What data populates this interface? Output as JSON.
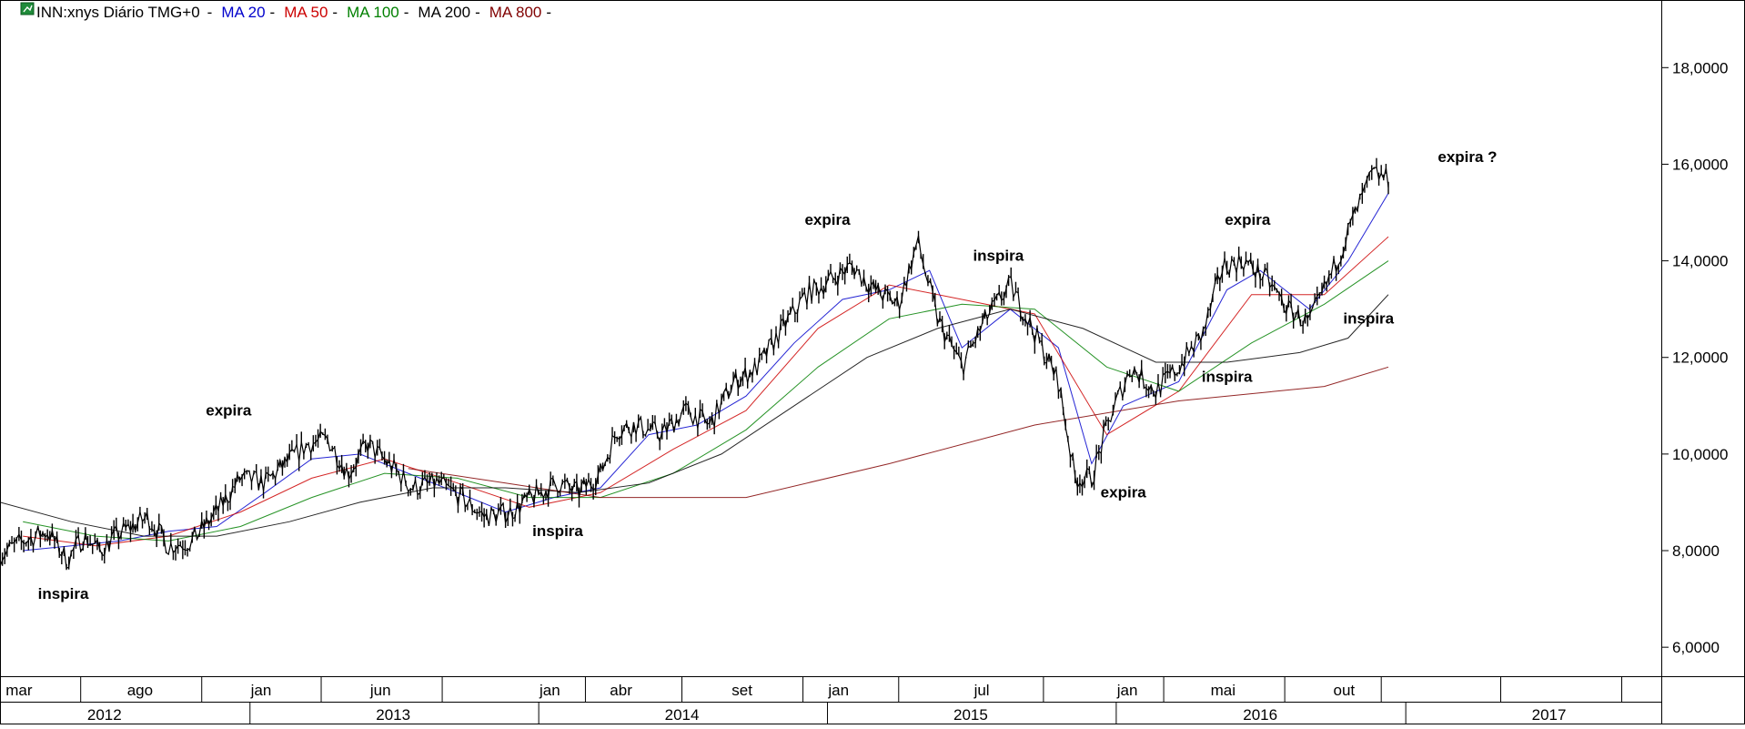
{
  "chart_data": {
    "type": "line",
    "subtype": "ohlc-price-with-moving-averages",
    "title": "INN:xnys Diário TMG+0",
    "legend": [
      {
        "name": "MA 20",
        "color": "#0000cc"
      },
      {
        "name": "MA 50",
        "color": "#cc0000"
      },
      {
        "name": "MA 100",
        "color": "#008000"
      },
      {
        "name": "MA 200",
        "color": "#000000"
      },
      {
        "name": "MA 800",
        "color": "#800000"
      }
    ],
    "legend_marker": "-",
    "yaxis": {
      "ticks": [
        6,
        8,
        10,
        12,
        14,
        16,
        18
      ],
      "tick_labels": [
        "6,0000",
        "8,0000",
        "10,0000",
        "12,0000",
        "14,0000",
        "16,0000",
        "18,0000"
      ],
      "range": [
        5.4,
        19.4
      ],
      "position": "right"
    },
    "xaxis": {
      "range": [
        "2012-02-20",
        "2017-11-20"
      ],
      "month_labels": [
        {
          "date": "2012-03-15",
          "label": "mar"
        },
        {
          "date": "2012-08-15",
          "label": "ago"
        },
        {
          "date": "2013-01-15",
          "label": "jan"
        },
        {
          "date": "2013-06-15",
          "label": "jun"
        },
        {
          "date": "2014-01-15",
          "label": "jan"
        },
        {
          "date": "2014-04-15",
          "label": "abr"
        },
        {
          "date": "2014-09-15",
          "label": "set"
        },
        {
          "date": "2015-01-15",
          "label": "jan"
        },
        {
          "date": "2015-07-15",
          "label": "jul"
        },
        {
          "date": "2016-01-15",
          "label": "jan"
        },
        {
          "date": "2016-05-15",
          "label": "mai"
        },
        {
          "date": "2016-10-15",
          "label": "out"
        }
      ],
      "month_dividers": [
        "2012-06-01",
        "2012-11-01",
        "2013-04-01",
        "2013-09-01",
        "2014-03-01",
        "2014-07-01",
        "2014-12-01",
        "2015-04-01",
        "2015-10-01",
        "2016-03-01",
        "2016-08-01",
        "2016-12-01",
        "2017-05-01",
        "2017-10-01"
      ],
      "year_labels": [
        {
          "date": "2012-07-01",
          "label": "2012"
        },
        {
          "date": "2013-07-01",
          "label": "2013"
        },
        {
          "date": "2014-07-01",
          "label": "2014"
        },
        {
          "date": "2015-07-01",
          "label": "2015"
        },
        {
          "date": "2016-07-01",
          "label": "2016"
        },
        {
          "date": "2017-07-01",
          "label": "2017"
        }
      ],
      "year_dividers": [
        "2013-01-01",
        "2014-01-01",
        "2015-01-01",
        "2016-01-01",
        "2017-01-01"
      ]
    },
    "series": [
      {
        "key": "price",
        "color": "#000000",
        "points": [
          [
            "2012-02-20",
            7.9
          ],
          [
            "2012-03-20",
            8.2
          ],
          [
            "2012-04-20",
            8.4
          ],
          [
            "2012-05-15",
            7.8
          ],
          [
            "2012-06-05",
            8.3
          ],
          [
            "2012-06-25",
            8.0
          ],
          [
            "2012-07-15",
            8.3
          ],
          [
            "2012-08-05",
            8.5
          ],
          [
            "2012-08-25",
            8.7
          ],
          [
            "2012-09-20",
            8.1
          ],
          [
            "2012-10-20",
            8.2
          ],
          [
            "2012-11-20",
            8.8
          ],
          [
            "2012-12-20",
            9.5
          ],
          [
            "2013-01-20",
            9.4
          ],
          [
            "2013-02-15",
            9.8
          ],
          [
            "2013-03-15",
            10.2
          ],
          [
            "2013-04-10",
            10.3
          ],
          [
            "2013-05-05",
            9.6
          ],
          [
            "2013-05-30",
            10.2
          ],
          [
            "2013-06-25",
            9.8
          ],
          [
            "2013-07-25",
            9.3
          ],
          [
            "2013-08-25",
            9.4
          ],
          [
            "2013-09-25",
            9.1
          ],
          [
            "2013-10-25",
            8.7
          ],
          [
            "2013-11-25",
            8.8
          ],
          [
            "2013-12-25",
            9.1
          ],
          [
            "2014-01-25",
            9.4
          ],
          [
            "2014-02-20",
            9.2
          ],
          [
            "2014-03-20",
            9.6
          ],
          [
            "2014-04-10",
            10.5
          ],
          [
            "2014-05-05",
            10.6
          ],
          [
            "2014-06-05",
            10.4
          ],
          [
            "2014-07-05",
            10.9
          ],
          [
            "2014-08-05",
            10.6
          ],
          [
            "2014-09-05",
            11.5
          ],
          [
            "2014-10-05",
            11.8
          ],
          [
            "2014-11-05",
            12.6
          ],
          [
            "2014-12-05",
            13.3
          ],
          [
            "2015-01-05",
            13.6
          ],
          [
            "2015-02-01",
            13.9
          ],
          [
            "2015-03-01",
            13.4
          ],
          [
            "2015-04-01",
            13.1
          ],
          [
            "2015-04-25",
            14.4
          ],
          [
            "2015-05-20",
            12.8
          ],
          [
            "2015-06-20",
            11.8
          ],
          [
            "2015-07-20",
            12.8
          ],
          [
            "2015-08-20",
            13.5
          ],
          [
            "2015-09-20",
            12.5
          ],
          [
            "2015-10-20",
            11.5
          ],
          [
            "2015-11-10",
            9.5
          ],
          [
            "2015-12-01",
            9.5
          ],
          [
            "2015-12-25",
            10.8
          ],
          [
            "2016-01-20",
            11.8
          ],
          [
            "2016-02-20",
            11.3
          ],
          [
            "2016-03-20",
            11.8
          ],
          [
            "2016-04-20",
            12.5
          ],
          [
            "2016-05-15",
            13.9
          ],
          [
            "2016-06-10",
            14.0
          ],
          [
            "2016-07-10",
            13.6
          ],
          [
            "2016-08-05",
            13.0
          ],
          [
            "2016-09-01",
            12.7
          ],
          [
            "2016-10-01",
            13.8
          ],
          [
            "2016-10-25",
            14.8
          ],
          [
            "2016-11-20",
            15.8
          ],
          [
            "2016-12-10",
            15.7
          ]
        ]
      },
      {
        "key": "ma20",
        "name": "MA 20",
        "color": "#0000cc",
        "points": [
          [
            "2012-03-20",
            8.0
          ],
          [
            "2012-05-20",
            8.1
          ],
          [
            "2012-07-20",
            8.2
          ],
          [
            "2012-09-20",
            8.4
          ],
          [
            "2012-11-20",
            8.5
          ],
          [
            "2013-01-20",
            9.2
          ],
          [
            "2013-03-20",
            9.9
          ],
          [
            "2013-05-20",
            10.0
          ],
          [
            "2013-07-20",
            9.6
          ],
          [
            "2013-09-20",
            9.2
          ],
          [
            "2013-11-20",
            8.8
          ],
          [
            "2014-01-20",
            9.1
          ],
          [
            "2014-03-20",
            9.3
          ],
          [
            "2014-05-20",
            10.4
          ],
          [
            "2014-07-20",
            10.6
          ],
          [
            "2014-09-20",
            11.2
          ],
          [
            "2014-11-20",
            12.3
          ],
          [
            "2015-01-20",
            13.2
          ],
          [
            "2015-03-20",
            13.4
          ],
          [
            "2015-05-10",
            13.8
          ],
          [
            "2015-06-20",
            12.2
          ],
          [
            "2015-08-20",
            13.0
          ],
          [
            "2015-10-20",
            12.2
          ],
          [
            "2015-12-01",
            9.8
          ],
          [
            "2016-01-10",
            11.0
          ],
          [
            "2016-03-20",
            11.5
          ],
          [
            "2016-05-20",
            13.4
          ],
          [
            "2016-07-01",
            13.8
          ],
          [
            "2016-09-01",
            13.0
          ],
          [
            "2016-10-20",
            14.0
          ],
          [
            "2016-12-10",
            15.4
          ]
        ]
      },
      {
        "key": "ma50",
        "name": "MA 50",
        "color": "#cc0000",
        "points": [
          [
            "2012-03-20",
            8.3
          ],
          [
            "2012-06-20",
            8.1
          ],
          [
            "2012-09-20",
            8.3
          ],
          [
            "2012-12-20",
            8.8
          ],
          [
            "2013-03-20",
            9.5
          ],
          [
            "2013-06-20",
            9.9
          ],
          [
            "2013-09-20",
            9.4
          ],
          [
            "2013-12-20",
            8.9
          ],
          [
            "2014-03-20",
            9.2
          ],
          [
            "2014-06-20",
            10.1
          ],
          [
            "2014-09-20",
            10.9
          ],
          [
            "2014-12-20",
            12.6
          ],
          [
            "2015-03-20",
            13.5
          ],
          [
            "2015-06-20",
            13.2
          ],
          [
            "2015-09-20",
            12.9
          ],
          [
            "2015-12-20",
            10.4
          ],
          [
            "2016-03-20",
            11.3
          ],
          [
            "2016-06-20",
            13.3
          ],
          [
            "2016-09-20",
            13.3
          ],
          [
            "2016-12-10",
            14.5
          ]
        ]
      },
      {
        "key": "ma100",
        "name": "MA 100",
        "color": "#008000",
        "points": [
          [
            "2012-03-20",
            8.6
          ],
          [
            "2012-06-20",
            8.3
          ],
          [
            "2012-09-20",
            8.2
          ],
          [
            "2012-12-20",
            8.5
          ],
          [
            "2013-03-20",
            9.1
          ],
          [
            "2013-06-20",
            9.6
          ],
          [
            "2013-09-20",
            9.5
          ],
          [
            "2013-12-20",
            9.1
          ],
          [
            "2014-03-20",
            9.1
          ],
          [
            "2014-06-20",
            9.6
          ],
          [
            "2014-09-20",
            10.5
          ],
          [
            "2014-12-20",
            11.8
          ],
          [
            "2015-03-20",
            12.8
          ],
          [
            "2015-06-20",
            13.1
          ],
          [
            "2015-09-20",
            13.0
          ],
          [
            "2015-12-20",
            11.8
          ],
          [
            "2016-03-20",
            11.3
          ],
          [
            "2016-06-20",
            12.3
          ],
          [
            "2016-09-20",
            13.1
          ],
          [
            "2016-12-10",
            14.0
          ]
        ]
      },
      {
        "key": "ma200",
        "name": "MA 200",
        "color": "#000000",
        "points": [
          [
            "2012-02-20",
            9.0
          ],
          [
            "2012-05-20",
            8.6
          ],
          [
            "2012-08-20",
            8.3
          ],
          [
            "2012-11-20",
            8.3
          ],
          [
            "2013-02-20",
            8.6
          ],
          [
            "2013-05-20",
            9.0
          ],
          [
            "2013-08-20",
            9.3
          ],
          [
            "2013-11-20",
            9.3
          ],
          [
            "2014-02-20",
            9.2
          ],
          [
            "2014-05-20",
            9.4
          ],
          [
            "2014-08-20",
            10.0
          ],
          [
            "2014-11-20",
            11.0
          ],
          [
            "2015-02-20",
            12.0
          ],
          [
            "2015-05-20",
            12.6
          ],
          [
            "2015-08-20",
            13.0
          ],
          [
            "2015-11-20",
            12.6
          ],
          [
            "2016-02-20",
            11.9
          ],
          [
            "2016-05-20",
            11.9
          ],
          [
            "2016-08-20",
            12.1
          ],
          [
            "2016-10-20",
            12.4
          ],
          [
            "2016-12-10",
            13.3
          ]
        ]
      },
      {
        "key": "ma800",
        "name": "MA 800",
        "color": "#800000",
        "points": [
          [
            "2013-07-20",
            9.7
          ],
          [
            "2013-11-20",
            9.4
          ],
          [
            "2014-03-20",
            9.1
          ],
          [
            "2014-09-20",
            9.1
          ],
          [
            "2015-03-20",
            9.8
          ],
          [
            "2015-09-20",
            10.6
          ],
          [
            "2016-03-20",
            11.1
          ],
          [
            "2016-09-20",
            11.4
          ],
          [
            "2016-12-10",
            11.8
          ]
        ]
      }
    ],
    "annotations": [
      {
        "text": "inspira",
        "date": "2012-05-10",
        "y": 7.0
      },
      {
        "text": "expira",
        "date": "2012-12-05",
        "y": 10.8
      },
      {
        "text": "inspira",
        "date": "2014-01-25",
        "y": 8.3
      },
      {
        "text": "expira",
        "date": "2015-01-01",
        "y": 14.75
      },
      {
        "text": "inspira",
        "date": "2015-08-05",
        "y": 14.0
      },
      {
        "text": "expira",
        "date": "2016-01-10",
        "y": 9.1
      },
      {
        "text": "inspira",
        "date": "2016-05-20",
        "y": 11.5
      },
      {
        "text": "expira",
        "date": "2016-06-15",
        "y": 14.75
      },
      {
        "text": "inspira",
        "date": "2016-11-15",
        "y": 12.7
      },
      {
        "text": "expira ?",
        "date": "2017-03-20",
        "y": 16.05
      }
    ]
  }
}
